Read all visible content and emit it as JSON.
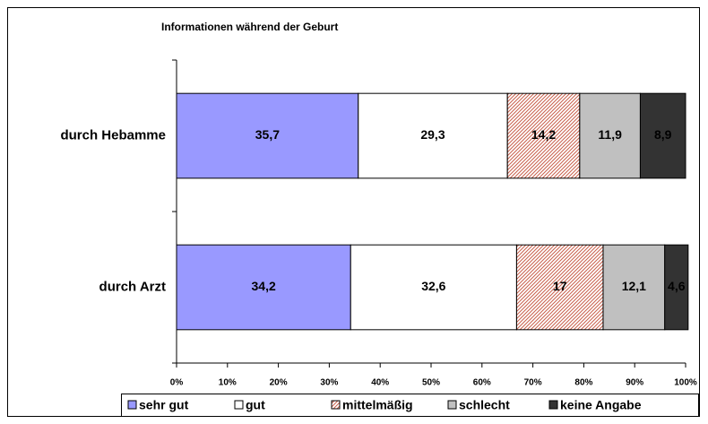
{
  "chart_data": {
    "type": "stacked_bar_horizontal",
    "title": "Informationen während der Geburt",
    "categories": [
      "durch Hebamme",
      "durch Arzt"
    ],
    "series": [
      {
        "name": "sehr gut",
        "color": "#9999ff",
        "values": [
          35.7,
          34.2
        ],
        "value_labels": [
          "35,7",
          "34,2"
        ]
      },
      {
        "name": "gut",
        "color": "#ffffff",
        "values": [
          29.3,
          32.6
        ],
        "value_labels": [
          "29,3",
          "32,6"
        ]
      },
      {
        "name": "mittelmäßig",
        "color": "#c8604c",
        "pattern": "hatch",
        "values": [
          14.2,
          17
        ],
        "value_labels": [
          "14,2",
          "17"
        ]
      },
      {
        "name": "schlecht",
        "color": "#c0c0c0",
        "values": [
          11.9,
          12.1
        ],
        "value_labels": [
          "11,9",
          "12,1"
        ]
      },
      {
        "name": "keine Angabe",
        "color": "#333333",
        "values": [
          8.9,
          4.6
        ],
        "value_labels": [
          "8,9",
          "4,6"
        ]
      }
    ],
    "xlim": [
      0,
      100
    ],
    "xticks": [
      {
        "value": 0,
        "label": "0%"
      },
      {
        "value": 10,
        "label": "10%"
      },
      {
        "value": 20,
        "label": "20%"
      },
      {
        "value": 30,
        "label": "30%"
      },
      {
        "value": 40,
        "label": "40%"
      },
      {
        "value": 50,
        "label": "50%"
      },
      {
        "value": 60,
        "label": "60%"
      },
      {
        "value": 70,
        "label": "70%"
      },
      {
        "value": 80,
        "label": "80%"
      },
      {
        "value": 90,
        "label": "90%"
      },
      {
        "value": 100,
        "label": "100%"
      }
    ],
    "legend": "bottom"
  }
}
